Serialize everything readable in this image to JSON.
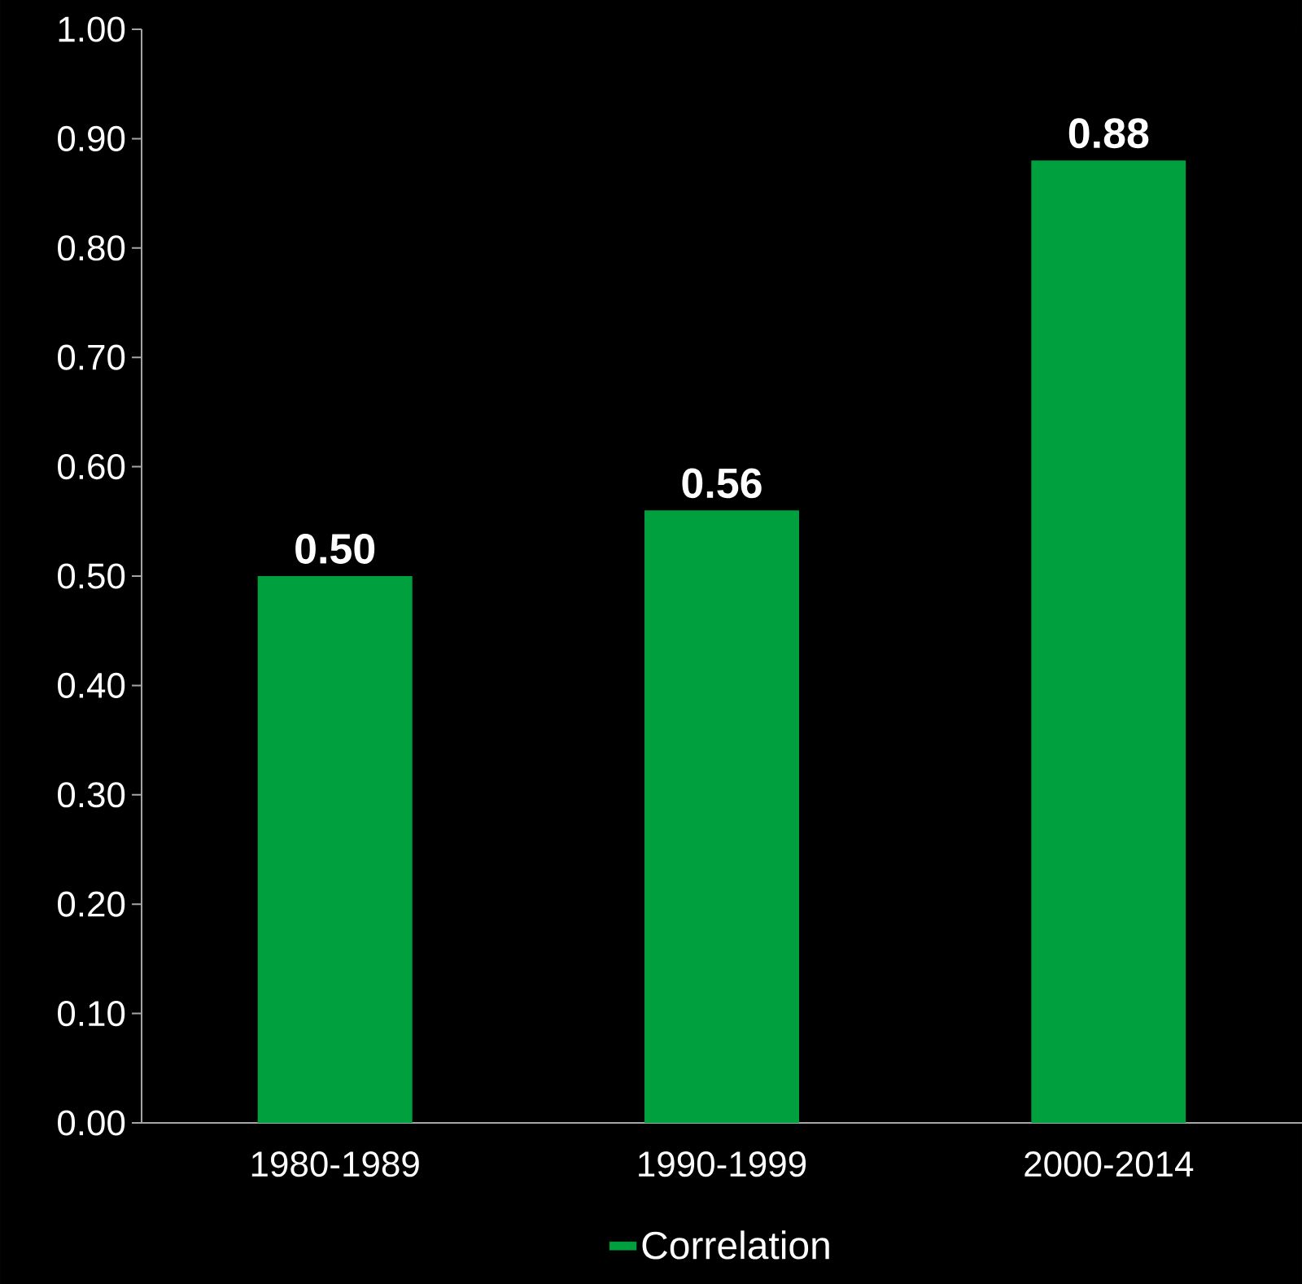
{
  "chart_data": {
    "type": "bar",
    "categories": [
      "1980-1989",
      "1990-1999",
      "2000-2014"
    ],
    "series": [
      {
        "name": "Correlation",
        "color": "#00a03e",
        "values": [
          0.5,
          0.56,
          0.88
        ],
        "value_labels": [
          "0.50",
          "0.56",
          "0.88"
        ]
      }
    ],
    "ylim": [
      0,
      1
    ],
    "yticks": [
      {
        "value": 0,
        "label": "0.00"
      },
      {
        "value": 0.1,
        "label": "0.10"
      },
      {
        "value": 0.2,
        "label": "0.20"
      },
      {
        "value": 0.3,
        "label": "0.30"
      },
      {
        "value": 0.4,
        "label": "0.40"
      },
      {
        "value": 0.5,
        "label": "0.50"
      },
      {
        "value": 0.6,
        "label": "0.60"
      },
      {
        "value": 0.7,
        "label": "0.70"
      },
      {
        "value": 0.8,
        "label": "0.80"
      },
      {
        "value": 0.9,
        "label": "0.90"
      },
      {
        "value": 1,
        "label": "1.00"
      }
    ],
    "legend": "bottom"
  }
}
